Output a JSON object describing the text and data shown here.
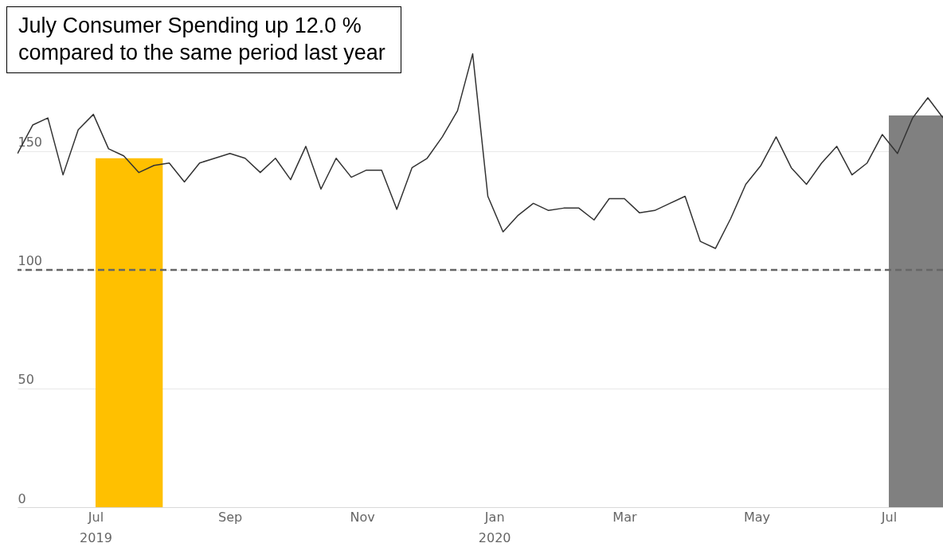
{
  "chart_data": {
    "type": "line",
    "series": [
      {
        "type": "bar",
        "x": [
          "2019-07",
          "2020-07"
        ],
        "colors": [
          "#ffc000",
          "#808080"
        ],
        "values": [
          147,
          165
        ]
      },
      {
        "color": "#333333",
        "x": [
          "2019-05-26",
          "2019-06-02",
          "2019-06-09",
          "2019-06-16",
          "2019-06-23",
          "2019-06-30",
          "2019-07-07",
          "2019-07-14",
          "2019-07-21",
          "2019-07-28",
          "2019-08-04",
          "2019-08-11",
          "2019-08-18",
          "2019-08-25",
          "2019-09-01",
          "2019-09-08",
          "2019-09-15",
          "2019-09-22",
          "2019-09-29",
          "2019-10-06",
          "2019-10-13",
          "2019-10-20",
          "2019-10-27",
          "2019-11-03",
          "2019-11-10",
          "2019-11-17",
          "2019-11-24",
          "2019-12-01",
          "2019-12-08",
          "2019-12-15",
          "2019-12-22",
          "2019-12-29",
          "2020-01-05",
          "2020-01-12",
          "2020-01-19",
          "2020-01-26",
          "2020-02-02",
          "2020-02-09",
          "2020-02-16",
          "2020-02-23",
          "2020-03-01",
          "2020-03-08",
          "2020-03-15",
          "2020-03-22",
          "2020-03-29",
          "2020-04-05",
          "2020-04-12",
          "2020-04-19",
          "2020-04-26",
          "2020-05-03",
          "2020-05-10",
          "2020-05-17",
          "2020-05-24",
          "2020-05-31",
          "2020-06-07",
          "2020-06-14",
          "2020-06-21",
          "2020-06-28",
          "2020-07-05",
          "2020-07-12",
          "2020-07-19",
          "2020-07-26"
        ],
        "values": [
          149,
          161,
          164,
          140,
          159,
          165.5,
          151,
          148,
          141,
          144,
          145,
          137,
          145,
          147,
          149,
          147,
          141,
          147,
          138,
          152,
          134,
          147,
          139,
          142,
          142,
          125.5,
          143,
          147,
          156,
          167,
          191,
          131,
          116,
          123,
          128,
          125,
          126,
          126,
          121,
          130,
          130,
          124,
          125,
          128,
          131,
          112,
          109,
          121.5,
          136,
          144,
          156,
          143,
          136,
          145,
          152,
          140,
          145,
          157,
          149,
          164,
          172.5,
          164
        ]
      }
    ],
    "xlim": [
      "2019-05-26",
      "2020-07-26"
    ],
    "xticks": [
      {
        "value": "2019-07-01",
        "label": "Jul\n2019"
      },
      {
        "value": "2019-09-01",
        "label": "Sep"
      },
      {
        "value": "2019-11-01",
        "label": "Nov"
      },
      {
        "value": "2020-01-01",
        "label": "Jan\n2020"
      },
      {
        "value": "2020-03-01",
        "label": "Mar"
      },
      {
        "value": "2020-05-01",
        "label": "May"
      },
      {
        "value": "2020-07-01",
        "label": "Jul"
      }
    ],
    "ylim": [
      0,
      213
    ],
    "yticks": [
      0,
      50,
      100,
      150
    ],
    "grid": "y",
    "ref_lines": [
      {
        "axis": "y",
        "value": 100,
        "color": "#666666",
        "line_style": "dashed"
      }
    ],
    "annotations": [
      "July Consumer Spending up 12.0 % compared to the same period last year"
    ]
  }
}
